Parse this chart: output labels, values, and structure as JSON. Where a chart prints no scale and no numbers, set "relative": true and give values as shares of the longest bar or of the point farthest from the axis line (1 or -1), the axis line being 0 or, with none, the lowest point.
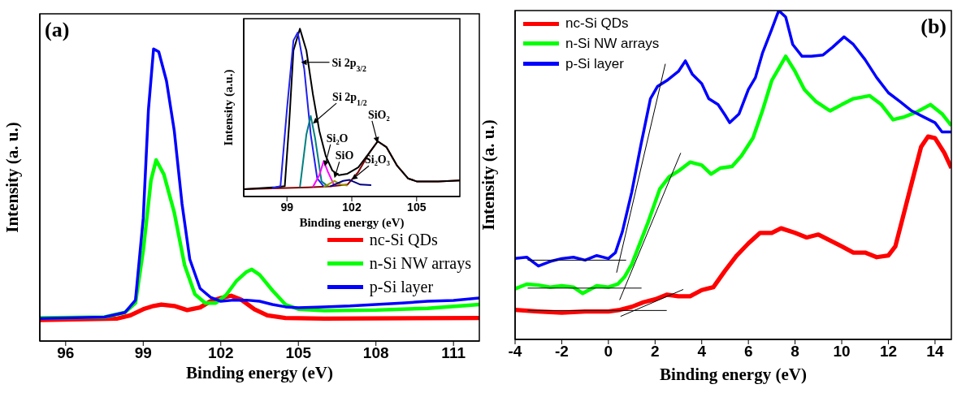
{
  "chart_data": [
    {
      "type": "line",
      "title": "(a)",
      "xlabel": "Binding energy (eV)",
      "ylabel": "Intensity (a. u.)",
      "relative": true,
      "xlim": [
        95,
        112
      ],
      "xticks": [
        96,
        99,
        102,
        105,
        108,
        111
      ],
      "tick_labels": "x",
      "legend": "bottom right",
      "series": [
        {
          "name": "nc-Si QDs",
          "color": "#ff0000",
          "x": [
            95,
            98,
            98.5,
            99,
            99.4,
            99.7,
            100.2,
            100.7,
            101.2,
            101.6,
            102,
            102.4,
            102.8,
            103.3,
            103.8,
            104.5,
            106,
            112
          ],
          "values": [
            0.072,
            0.077,
            0.088,
            0.109,
            0.12,
            0.125,
            0.12,
            0.106,
            0.115,
            0.136,
            0.147,
            0.155,
            0.141,
            0.109,
            0.088,
            0.079,
            0.077,
            0.079
          ]
        },
        {
          "name": "n-Si NW arrays",
          "color": "#00ff00",
          "x": [
            95,
            97.5,
            98.3,
            98.7,
            99,
            99.3,
            99.5,
            99.8,
            100.2,
            100.6,
            101,
            101.4,
            101.8,
            102.2,
            102.6,
            103,
            103.2,
            103.5,
            104,
            104.5,
            105,
            106,
            108,
            110,
            112
          ],
          "values": [
            0.079,
            0.082,
            0.098,
            0.13,
            0.31,
            0.55,
            0.62,
            0.57,
            0.44,
            0.26,
            0.16,
            0.13,
            0.13,
            0.157,
            0.205,
            0.237,
            0.245,
            0.227,
            0.173,
            0.125,
            0.109,
            0.104,
            0.106,
            0.112,
            0.125
          ]
        },
        {
          "name": "p-Si layer",
          "color": "#0000ff",
          "x": [
            95,
            97.5,
            98.3,
            98.7,
            99,
            99.2,
            99.4,
            99.6,
            99.9,
            100.2,
            100.5,
            100.8,
            101.2,
            101.6,
            102,
            102.5,
            103,
            103.5,
            104,
            104.5,
            105,
            106,
            107,
            108,
            109,
            110,
            111,
            112
          ],
          "values": [
            0.077,
            0.082,
            0.098,
            0.14,
            0.42,
            0.79,
            1,
            0.99,
            0.89,
            0.72,
            0.47,
            0.28,
            0.18,
            0.15,
            0.136,
            0.14,
            0.14,
            0.136,
            0.125,
            0.117,
            0.114,
            0.117,
            0.12,
            0.125,
            0.13,
            0.136,
            0.139,
            0.147
          ]
        }
      ]
    },
    {
      "type": "line",
      "xlabel": "Binding energy (eV)",
      "ylabel": "Intensity (a.u.)",
      "relative": true,
      "xlim": [
        97,
        107
      ],
      "xticks": [
        99,
        102,
        105
      ],
      "tick_labels": "x",
      "annotations": [
        {
          "text": "Si 2p$_{3/2}$",
          "x": 99.65,
          "y": 0.8
        },
        {
          "text": "Si 2p$_{1/2}$",
          "x": 100.2,
          "y": 0.435
        },
        {
          "text": "Si₂O",
          "x": 100.75,
          "y": 0.18
        },
        {
          "text": "SiO",
          "x": 101.2,
          "y": 0.11
        },
        {
          "text": "SiO₂",
          "x": 103.2,
          "y": 0.32
        },
        {
          "text": "Si₂O₃",
          "x": 102,
          "y": 0.1
        }
      ],
      "series": [
        {
          "color": "#800000",
          "x": [
            97,
            100,
            101,
            101.8,
            102.3,
            102.8,
            103.2,
            103.6,
            104.1,
            104.6,
            105,
            106,
            107
          ],
          "values": [
            0.043,
            0.055,
            0.06,
            0.071,
            0.146,
            0.258,
            0.329,
            0.295,
            0.183,
            0.108,
            0.09,
            0.09,
            0.095
          ]
        },
        {
          "color": "#000000",
          "x": [
            97,
            98.5,
            98.9,
            99.1,
            99.3,
            99.6,
            99.9,
            100.2,
            100.5,
            100.8,
            101.1,
            101.4,
            101.8,
            102.3,
            102.8,
            103.2,
            103.6,
            104.1,
            104.6,
            105,
            106,
            107
          ],
          "values": [
            0.043,
            0.056,
            0.062,
            0.43,
            0.87,
            1,
            0.87,
            0.61,
            0.39,
            0.24,
            0.155,
            0.127,
            0.136,
            0.174,
            0.258,
            0.329,
            0.295,
            0.183,
            0.108,
            0.09,
            0.09,
            0.095
          ]
        },
        {
          "color": "#2020ee",
          "x": [
            98.3,
            98.7,
            99,
            99.3,
            99.5,
            99.8,
            100.1,
            100.4,
            100.7
          ],
          "values": [
            0.05,
            0.062,
            0.52,
            0.93,
            0.978,
            0.76,
            0.37,
            0.108,
            0.06
          ]
        },
        {
          "color": "#008080",
          "x": [
            99.6,
            99.9,
            100.1,
            100.3,
            100.6,
            100.9
          ],
          "values": [
            0.055,
            0.37,
            0.48,
            0.35,
            0.09,
            0.06
          ]
        },
        {
          "color": "#ff00ff",
          "x": [
            100.2,
            100.5,
            100.7,
            100.9,
            101.2
          ],
          "values": [
            0.057,
            0.127,
            0.211,
            0.146,
            0.062
          ]
        },
        {
          "color": "#999900",
          "x": [
            100.7,
            101.2,
            101.5,
            101.8
          ],
          "values": [
            0.058,
            0.093,
            0.071,
            0.065
          ]
        },
        {
          "color": "#000080",
          "x": [
            101,
            101.6,
            101.9,
            102.4,
            102.9
          ],
          "values": [
            0.06,
            0.093,
            0.099,
            0.071,
            0.068
          ]
        }
      ]
    },
    {
      "type": "line",
      "title": "(b)",
      "xlabel": "Binding energy (eV)",
      "ylabel": "Intensity (a. u.)",
      "relative": true,
      "xlim": [
        -4,
        14.7
      ],
      "xticks": [
        -4,
        -2,
        0,
        2,
        4,
        6,
        8,
        10,
        12,
        14
      ],
      "tick_labels": "x",
      "legend": "top left",
      "series": [
        {
          "name": "nc-Si QDs",
          "color": "#ff0000",
          "x": [
            -4,
            -3,
            -2,
            -1,
            0,
            0.5,
            1,
            1.5,
            2,
            2.5,
            3,
            3.5,
            4,
            4.5,
            5,
            5.5,
            6,
            6.5,
            7,
            7.4,
            8,
            8.5,
            9,
            9.5,
            10,
            10.5,
            11,
            11.5,
            12,
            12.3,
            12.7,
            13.1,
            13.4,
            13.7,
            14,
            14.4,
            14.7
          ],
          "values": [
            0.09,
            0.085,
            0.081,
            0.085,
            0.085,
            0.09,
            0.099,
            0.113,
            0.122,
            0.136,
            0.131,
            0.131,
            0.15,
            0.159,
            0.209,
            0.255,
            0.292,
            0.324,
            0.324,
            0.338,
            0.324,
            0.31,
            0.319,
            0.301,
            0.283,
            0.264,
            0.264,
            0.25,
            0.255,
            0.283,
            0.393,
            0.503,
            0.585,
            0.617,
            0.612,
            0.567,
            0.521
          ]
        },
        {
          "name": "n-Si NW arrays",
          "color": "#00ff00",
          "x": [
            -4,
            -3.5,
            -3,
            -2.5,
            -2,
            -1.5,
            -1.1,
            -0.5,
            0,
            0.4,
            0.7,
            1,
            1.3,
            1.7,
            2.2,
            2.6,
            3,
            3.5,
            4,
            4.4,
            4.8,
            5.3,
            5.7,
            6.2,
            6.6,
            7,
            7.3,
            7.6,
            8,
            8.4,
            8.9,
            9.5,
            10,
            10.5,
            11.2,
            11.7,
            12.2,
            12.7,
            13.2,
            13.8,
            14.3,
            14.7
          ],
          "values": [
            0.154,
            0.168,
            0.165,
            0.159,
            0.163,
            0.159,
            0.14,
            0.163,
            0.159,
            0.168,
            0.191,
            0.228,
            0.283,
            0.356,
            0.457,
            0.494,
            0.512,
            0.539,
            0.53,
            0.503,
            0.521,
            0.526,
            0.558,
            0.613,
            0.695,
            0.787,
            0.824,
            0.861,
            0.815,
            0.76,
            0.723,
            0.695,
            0.714,
            0.732,
            0.741,
            0.714,
            0.668,
            0.677,
            0.691,
            0.714,
            0.686,
            0.65
          ]
        },
        {
          "name": "p-Si layer",
          "color": "#0000ff",
          "x": [
            -4,
            -3.5,
            -3,
            -2.5,
            -2,
            -1.5,
            -1,
            -0.5,
            0,
            0.3,
            0.6,
            1,
            1.4,
            1.8,
            2.1,
            2.5,
            3,
            3.3,
            3.6,
            4,
            4.3,
            4.7,
            5,
            5.2,
            5.6,
            6,
            6.3,
            6.6,
            7,
            7.3,
            7.6,
            7.9,
            8.3,
            8.7,
            9.2,
            9.6,
            10.1,
            10.5,
            11,
            11.5,
            12,
            12.5,
            13,
            13.5,
            14,
            14.3,
            14.7
          ],
          "values": [
            0.246,
            0.25,
            0.223,
            0.237,
            0.246,
            0.25,
            0.241,
            0.255,
            0.246,
            0.264,
            0.328,
            0.448,
            0.594,
            0.732,
            0.769,
            0.787,
            0.815,
            0.847,
            0.806,
            0.778,
            0.732,
            0.714,
            0.682,
            0.659,
            0.686,
            0.76,
            0.796,
            0.87,
            0.943,
            1,
            0.98,
            0.897,
            0.861,
            0.861,
            0.865,
            0.888,
            0.92,
            0.897,
            0.851,
            0.796,
            0.75,
            0.723,
            0.695,
            0.677,
            0.659,
            0.631,
            0.631
          ]
        },
        {
          "color": "#000000",
          "x": [
            -3.46,
            0.76
          ],
          "values": [
            0.241,
            0.241
          ]
        },
        {
          "color": "#000000",
          "x": [
            0.35,
            2.44
          ],
          "values": [
            0.203,
            0.838
          ]
        },
        {
          "color": "#000000",
          "x": [
            -3.46,
            1.42
          ],
          "values": [
            0.156,
            0.156
          ]
        },
        {
          "color": "#000000",
          "x": [
            0.48,
            3.1
          ],
          "values": [
            0.12,
            0.567
          ]
        },
        {
          "color": "#000000",
          "x": [
            -3.46,
            2.5
          ],
          "values": [
            0.088,
            0.088
          ]
        },
        {
          "color": "#000000",
          "x": [
            0.52,
            3.21
          ],
          "values": [
            0.07,
            0.152
          ]
        }
      ]
    }
  ]
}
